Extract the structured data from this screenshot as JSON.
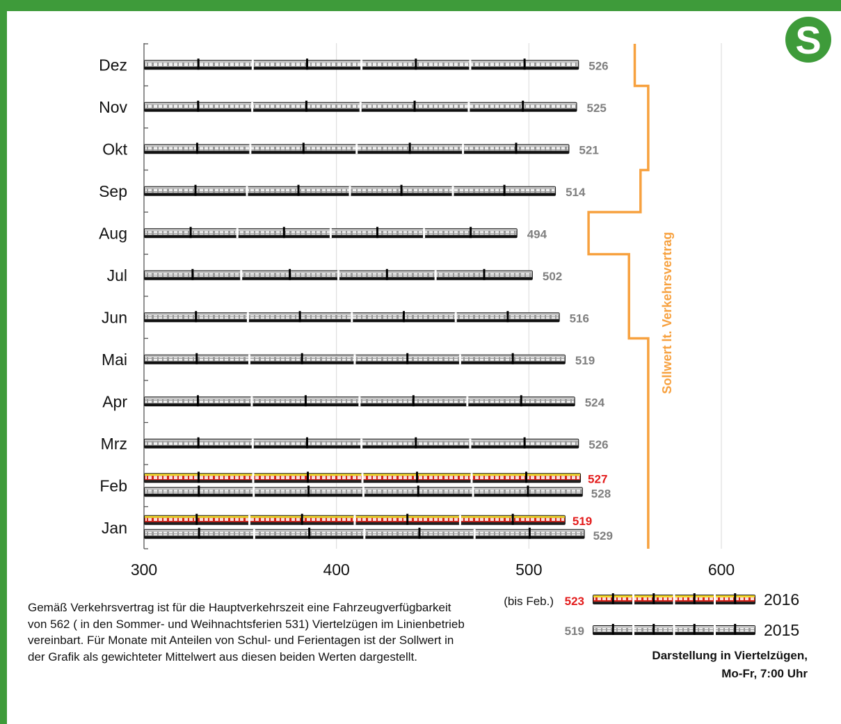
{
  "chart_data": {
    "type": "bar",
    "categories": [
      "Jan",
      "Feb",
      "Mrz",
      "Apr",
      "Mai",
      "Jun",
      "Jul",
      "Aug",
      "Sep",
      "Okt",
      "Nov",
      "Dez"
    ],
    "series": [
      {
        "name": "2015",
        "values": [
          529,
          528,
          526,
          524,
          519,
          516,
          502,
          494,
          514,
          521,
          525,
          526
        ]
      },
      {
        "name": "2016",
        "values": [
          519,
          527,
          null,
          null,
          null,
          null,
          null,
          null,
          null,
          null,
          null,
          null
        ]
      }
    ],
    "sollwert": {
      "label": "Sollwert lt. Verkehrsvertrag",
      "values": [
        562,
        562,
        562,
        562,
        562,
        552,
        552,
        531,
        558,
        562,
        562,
        555
      ]
    },
    "xticks": [
      "300",
      "400",
      "500",
      "600"
    ],
    "xlim": [
      300,
      600
    ],
    "orientation": "horizontal",
    "grid": true
  },
  "colors": {
    "frame_green": "#3e9b3a",
    "sollwert_orange": "#f7a13f",
    "value_2015_gray": "#7f7f7f",
    "value_2016_red": "#e31b1b",
    "train_gray": "#bfbfbf",
    "train_red": "#d7231b",
    "train_yellow": "#f2d72b"
  },
  "logo": {
    "letter": "S"
  },
  "note": "Gemäß Verkehrsvertrag ist für die Hauptverkehrszeit eine Fahrzeugverfügbarkeit von 562 ( in den Sommer- und Weihnachtsferien 531) Viertelzügen im Linienbetrieb vereinbart. Für Monate mit Anteilen von Schul- und Ferientagen ist der Sollwert in der Grafik als gewichteter Mittelwert aus diesen beiden Werten dargestellt.",
  "legend": {
    "row2016": {
      "prefix": "(bis Feb.)",
      "value": "523",
      "year": "2016"
    },
    "row2015": {
      "value": "519",
      "year": "2015"
    },
    "caption_line1": "Darstellung in Viertelzügen,",
    "caption_line2": "Mo-Fr, 7:00 Uhr"
  }
}
